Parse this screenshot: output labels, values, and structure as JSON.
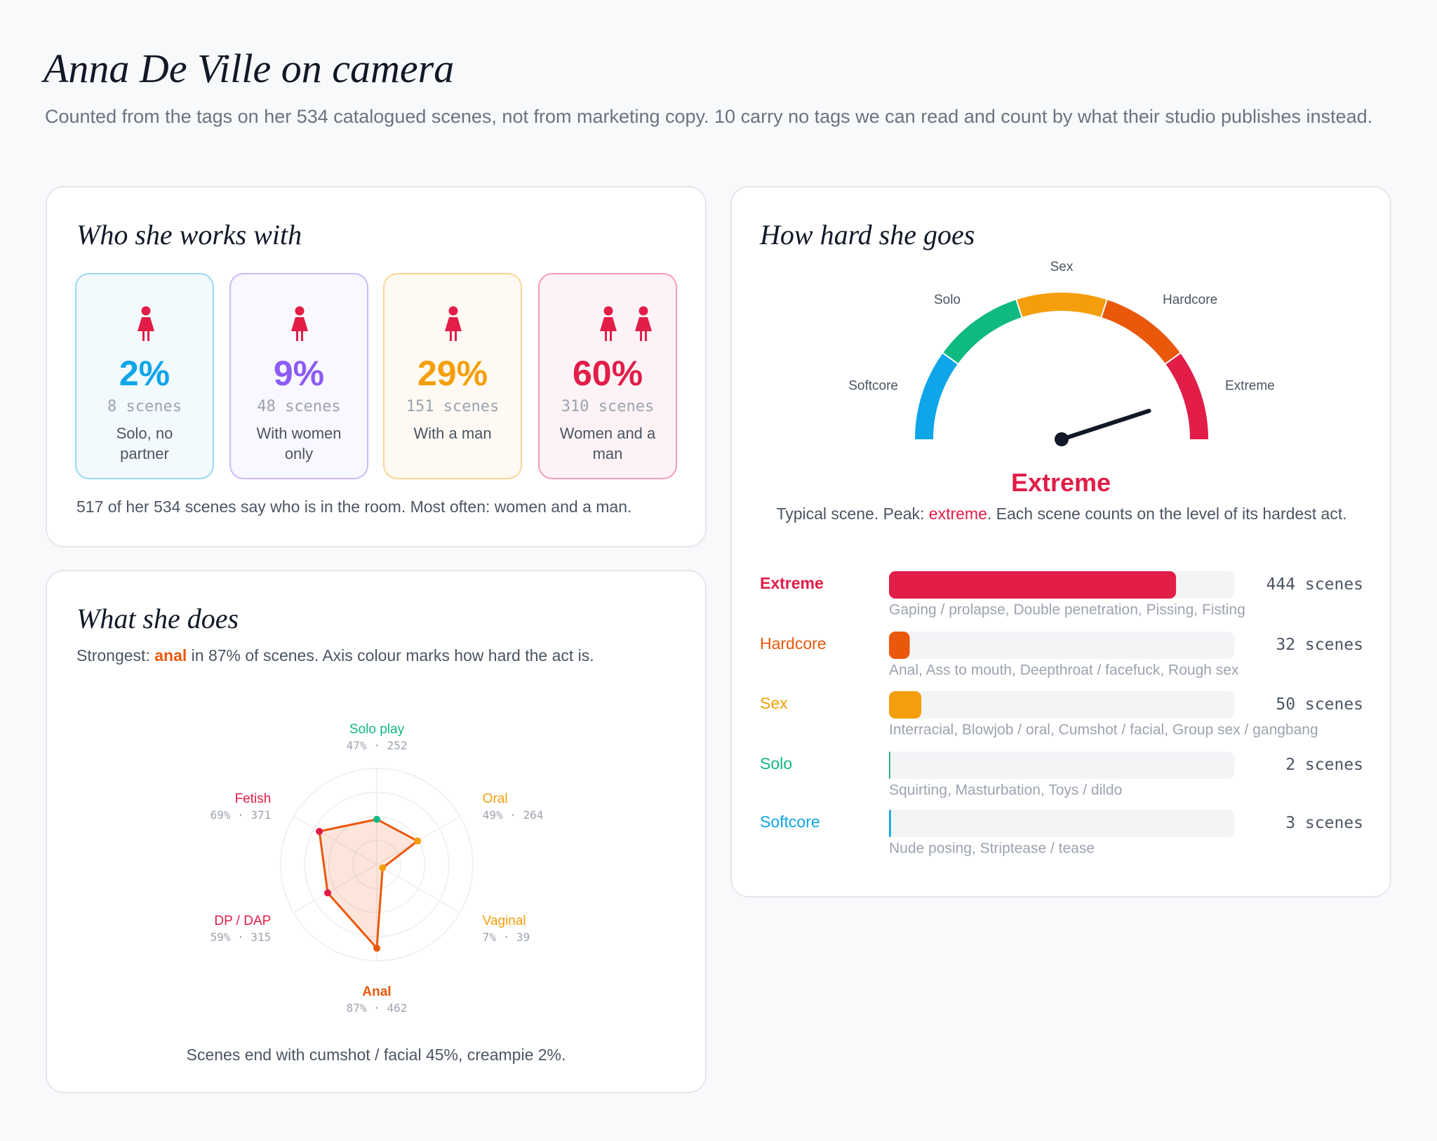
{
  "header": {
    "title": "Anna De Ville on camera",
    "subtitle": "Counted from the tags on her 534 catalogued scenes, not from marketing copy. 10 carry no tags we can read and count by what their studio publishes instead."
  },
  "partners": {
    "title": "Who she works with",
    "unit": "scenes",
    "cards": [
      {
        "share": "2%",
        "count": 8,
        "label": "Solo, no partner",
        "color": "#0ea5e9"
      },
      {
        "share": "9%",
        "count": 48,
        "label": "With women only",
        "color": "#8b5cf6"
      },
      {
        "share": "29%",
        "count": 151,
        "label": "With a man",
        "color": "#f59e0b"
      },
      {
        "share": "60%",
        "count": 310,
        "label": "Women and a man",
        "color": "#e11d48"
      }
    ],
    "note": "517 of her 534 scenes say who is in the room. Most often: women and a man."
  },
  "acts": {
    "title": "What she does",
    "summary": {
      "before": "Strongest: ",
      "highlight": "anal",
      "after": " in 87% of scenes. Axis colour marks how hard the act is."
    },
    "highlight_color": "#ea580c",
    "chart_data": {
      "type": "radar",
      "rlim": [
        0,
        100
      ],
      "rticks": [
        25,
        50,
        75,
        100
      ],
      "separator": "·",
      "color": "#ea580c",
      "axes": [
        {
          "name": "Solo play",
          "value": 47,
          "value_label": "47%",
          "count": 252,
          "color": "#10b981"
        },
        {
          "name": "Oral",
          "value": 49,
          "value_label": "49%",
          "count": 264,
          "color": "#f59e0b"
        },
        {
          "name": "Vaginal",
          "value": 7,
          "value_label": "7%",
          "count": 39,
          "color": "#f59e0b"
        },
        {
          "name": "Anal",
          "value": 87,
          "value_label": "87%",
          "count": 462,
          "color": "#ea580c"
        },
        {
          "name": "DP / DAP",
          "value": 59,
          "value_label": "59%",
          "count": 315,
          "color": "#e11d48"
        },
        {
          "name": "Fetish",
          "value": 69,
          "value_label": "69%",
          "count": 371,
          "color": "#e11d48"
        }
      ]
    },
    "footnote": "Scenes end with cumshot / facial 45%, creampie 2%."
  },
  "intensity": {
    "title": "How hard she goes",
    "typical": "Extreme",
    "caption": {
      "before": "Typical scene. Peak: ",
      "highlight": "extreme",
      "after": ". Each scene counts on the level of its hardest act."
    },
    "unit": "scenes",
    "chart_data": {
      "type": "gauge-bars",
      "xlim": [
        0,
        534
      ],
      "levels": [
        {
          "name": "Extreme",
          "color": "#e11d48",
          "count": 444,
          "tags": "Gaping / prolapse, Double penetration, Pissing, Fisting"
        },
        {
          "name": "Hardcore",
          "color": "#ea580c",
          "count": 32,
          "tags": "Anal, Ass to mouth, Deepthroat / facefuck, Rough sex"
        },
        {
          "name": "Sex",
          "color": "#f59e0b",
          "count": 50,
          "tags": "Interracial, Blowjob / oral, Cumshot / facial, Group sex / gangbang"
        },
        {
          "name": "Solo",
          "color": "#10b981",
          "count": 2,
          "tags": "Squirting, Masturbation, Toys / dildo"
        },
        {
          "name": "Softcore",
          "color": "#0ea5e9",
          "count": 3,
          "tags": "Nude posing, Striptease / tease"
        }
      ]
    }
  }
}
